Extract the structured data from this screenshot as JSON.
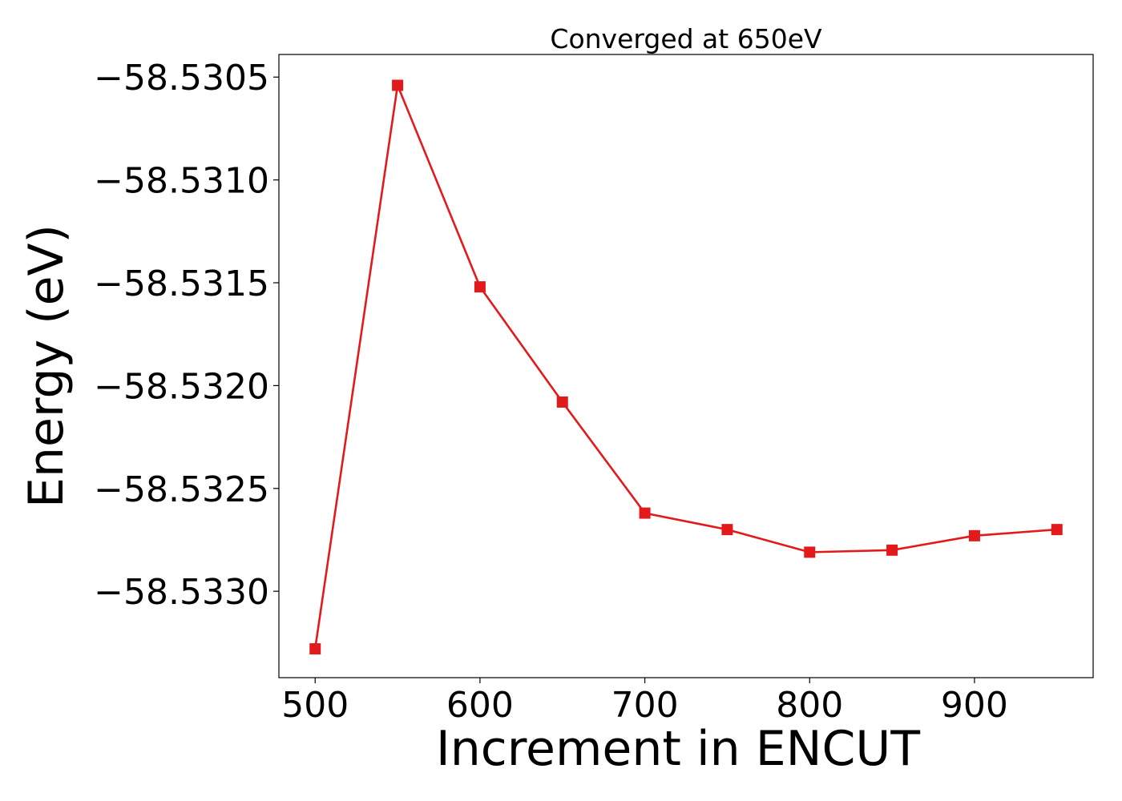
{
  "chart_data": {
    "type": "line",
    "title": "Converged at 650eV",
    "xlabel": "Increment in ENCUT",
    "ylabel": "Energy (eV)",
    "x": [
      500,
      550,
      600,
      650,
      700,
      750,
      800,
      850,
      900,
      950
    ],
    "series": [
      {
        "values": [
          -58.53328,
          -58.53054,
          -58.53152,
          -58.53208,
          -58.53262,
          -58.5327,
          -58.53281,
          -58.5328,
          -58.53273,
          -58.5327
        ],
        "color": "#e31a1c",
        "marker": "square"
      }
    ],
    "xlim": [
      478,
      972
    ],
    "ylim": [
      -58.53342,
      -58.53039
    ],
    "xticks": [
      500,
      600,
      700,
      800,
      900
    ],
    "xtick_labels": [
      "500",
      "600",
      "700",
      "800",
      "900"
    ],
    "yticks": [
      -58.533,
      -58.5325,
      -58.532,
      -58.5315,
      -58.531,
      -58.5305
    ],
    "ytick_labels": [
      "−58.5330",
      "−58.5325",
      "−58.5320",
      "−58.5315",
      "−58.5310",
      "−58.5305"
    ],
    "grid": false,
    "legend": "none"
  }
}
